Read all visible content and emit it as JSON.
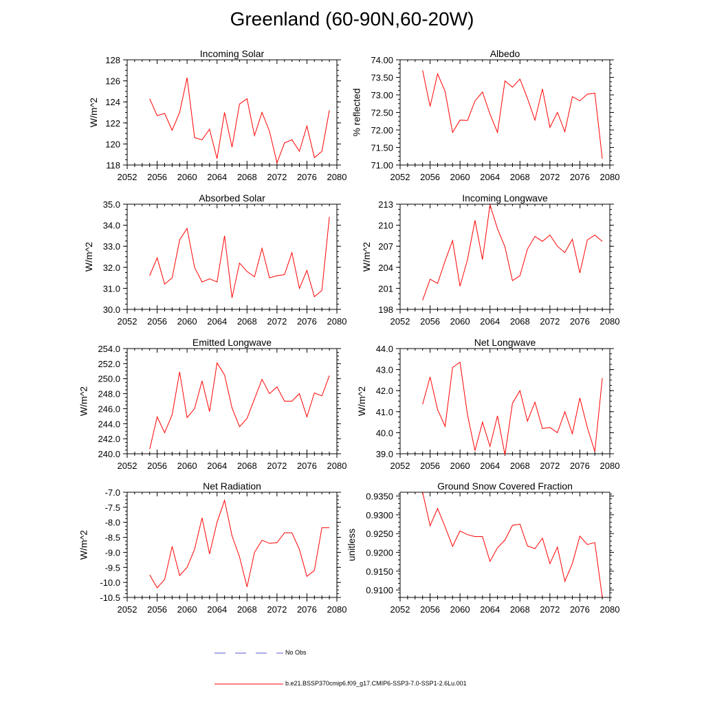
{
  "title": "Greenland (60-90N,60-20W)",
  "legend": {
    "entries": [
      {
        "label": "No Obs",
        "color": "#5a5ad8",
        "style": "dashed"
      },
      {
        "label": "b.e21.BSSP370cmip6.f09_g17.CMIP6-SSP3-7.0-SSP1-2.6Lu.001",
        "color": "#ff0000",
        "style": "solid"
      }
    ]
  },
  "chart_data": [
    {
      "type": "line",
      "title": "Incoming Solar",
      "xlabel": "",
      "ylabel": "W/m^2",
      "xlim": [
        2052,
        2080
      ],
      "ylim": [
        118,
        128
      ],
      "xticks": [
        "2052",
        "2056",
        "2060",
        "2064",
        "2068",
        "2072",
        "2076",
        "2080"
      ],
      "yticks": [
        "118",
        "120",
        "122",
        "124",
        "126",
        "128"
      ],
      "series": [
        {
          "color": "#ff0000",
          "x": [
            2055,
            2056,
            2057,
            2058,
            2059,
            2060,
            2061,
            2062,
            2063,
            2064,
            2065,
            2066,
            2067,
            2068,
            2069,
            2070,
            2071,
            2072,
            2073,
            2074,
            2075,
            2076,
            2077,
            2078,
            2079
          ],
          "y": [
            124.3,
            122.7,
            122.9,
            121.3,
            123.0,
            126.3,
            120.6,
            120.4,
            121.4,
            118.6,
            123.0,
            119.7,
            123.8,
            124.3,
            120.8,
            123.0,
            121.2,
            118.2,
            120.1,
            120.4,
            119.3,
            121.7,
            118.7,
            119.3,
            123.2
          ]
        }
      ]
    },
    {
      "type": "line",
      "title": "Albedo",
      "xlabel": "",
      "ylabel": "% reflected",
      "xlim": [
        2052,
        2080
      ],
      "ylim": [
        71.0,
        74.0
      ],
      "xticks": [
        "2052",
        "2056",
        "2060",
        "2064",
        "2068",
        "2072",
        "2076",
        "2080"
      ],
      "yticks": [
        "71.00",
        "71.50",
        "72.00",
        "72.50",
        "73.00",
        "73.50",
        "74.00"
      ],
      "series": [
        {
          "color": "#ff0000",
          "x": [
            2055,
            2056,
            2057,
            2058,
            2059,
            2060,
            2061,
            2062,
            2063,
            2064,
            2065,
            2066,
            2067,
            2068,
            2069,
            2070,
            2071,
            2072,
            2073,
            2074,
            2075,
            2076,
            2077,
            2078,
            2079
          ],
          "y": [
            73.7,
            72.67,
            73.6,
            73.1,
            71.93,
            72.28,
            72.27,
            72.83,
            73.08,
            72.45,
            71.93,
            73.4,
            73.22,
            73.45,
            72.9,
            72.28,
            73.17,
            72.07,
            72.5,
            71.95,
            72.95,
            72.83,
            73.02,
            73.05,
            71.18
          ]
        }
      ]
    },
    {
      "type": "line",
      "title": "Absorbed Solar",
      "xlabel": "",
      "ylabel": "W/m^2",
      "xlim": [
        2052,
        2080
      ],
      "ylim": [
        30.0,
        35.0
      ],
      "xticks": [
        "2052",
        "2056",
        "2060",
        "2064",
        "2068",
        "2072",
        "2076",
        "2080"
      ],
      "yticks": [
        "30.0",
        "31.0",
        "32.0",
        "33.0",
        "34.0",
        "35.0"
      ],
      "series": [
        {
          "color": "#ff0000",
          "x": [
            2055,
            2056,
            2057,
            2058,
            2059,
            2060,
            2061,
            2062,
            2063,
            2064,
            2065,
            2066,
            2067,
            2068,
            2069,
            2070,
            2071,
            2072,
            2073,
            2074,
            2075,
            2076,
            2077,
            2078,
            2079
          ],
          "y": [
            31.6,
            32.45,
            31.2,
            31.5,
            33.3,
            33.85,
            32.0,
            31.3,
            31.45,
            31.3,
            33.5,
            30.55,
            32.2,
            31.8,
            31.55,
            32.9,
            31.5,
            31.6,
            31.65,
            32.7,
            31.0,
            31.85,
            30.6,
            30.9,
            34.4
          ]
        }
      ]
    },
    {
      "type": "line",
      "title": "Incoming Longwave",
      "xlabel": "",
      "ylabel": "W/m^2",
      "xlim": [
        2052,
        2080
      ],
      "ylim": [
        198,
        213
      ],
      "xticks": [
        "2052",
        "2056",
        "2060",
        "2064",
        "2068",
        "2072",
        "2076",
        "2080"
      ],
      "yticks": [
        "198",
        "201",
        "204",
        "207",
        "210",
        "213"
      ],
      "series": [
        {
          "color": "#ff0000",
          "x": [
            2055,
            2056,
            2057,
            2058,
            2059,
            2060,
            2061,
            2062,
            2063,
            2064,
            2065,
            2066,
            2067,
            2068,
            2069,
            2070,
            2071,
            2072,
            2073,
            2074,
            2075,
            2076,
            2077,
            2078,
            2079
          ],
          "y": [
            199.3,
            202.3,
            201.7,
            204.9,
            207.8,
            201.3,
            205.1,
            210.7,
            205.1,
            212.9,
            209.5,
            206.9,
            202.1,
            202.8,
            206.6,
            208.4,
            207.7,
            208.6,
            207.0,
            206.1,
            208.0,
            203.2,
            207.9,
            208.6,
            207.7
          ]
        }
      ]
    },
    {
      "type": "line",
      "title": "Emitted Longwave",
      "xlabel": "",
      "ylabel": "W/m^2",
      "xlim": [
        2052,
        2080
      ],
      "ylim": [
        240.0,
        254.0
      ],
      "xticks": [
        "2052",
        "2056",
        "2060",
        "2064",
        "2068",
        "2072",
        "2076",
        "2080"
      ],
      "yticks": [
        "240.0",
        "242.0",
        "244.0",
        "246.0",
        "248.0",
        "250.0",
        "252.0",
        "254.0"
      ],
      "series": [
        {
          "color": "#ff0000",
          "x": [
            2055,
            2056,
            2057,
            2058,
            2059,
            2060,
            2061,
            2062,
            2063,
            2064,
            2065,
            2066,
            2067,
            2068,
            2069,
            2070,
            2071,
            2072,
            2073,
            2074,
            2075,
            2076,
            2077,
            2078,
            2079
          ],
          "y": [
            240.6,
            244.9,
            242.8,
            245.2,
            250.9,
            244.8,
            246.0,
            249.7,
            245.6,
            252.1,
            250.5,
            246.1,
            243.6,
            244.7,
            247.3,
            249.9,
            248.0,
            248.9,
            247.0,
            247.0,
            248.0,
            244.9,
            248.1,
            247.7,
            250.4
          ]
        }
      ]
    },
    {
      "type": "line",
      "title": "Net Longwave",
      "xlabel": "",
      "ylabel": "W/m^2",
      "xlim": [
        2052,
        2080
      ],
      "ylim": [
        39.0,
        44.0
      ],
      "xticks": [
        "2052",
        "2056",
        "2060",
        "2064",
        "2068",
        "2072",
        "2076",
        "2080"
      ],
      "yticks": [
        "39.0",
        "40.0",
        "41.0",
        "42.0",
        "43.0",
        "44.0"
      ],
      "series": [
        {
          "color": "#ff0000",
          "x": [
            2055,
            2056,
            2057,
            2058,
            2059,
            2060,
            2061,
            2062,
            2063,
            2064,
            2065,
            2066,
            2067,
            2068,
            2069,
            2070,
            2071,
            2072,
            2073,
            2074,
            2075,
            2076,
            2077,
            2078,
            2079
          ],
          "y": [
            41.35,
            42.65,
            41.1,
            40.3,
            43.1,
            43.35,
            40.85,
            39.15,
            40.5,
            39.35,
            40.8,
            38.95,
            41.4,
            42.0,
            40.55,
            41.45,
            40.2,
            40.25,
            40.0,
            41.0,
            39.95,
            41.65,
            40.25,
            39.1,
            42.6
          ]
        }
      ]
    },
    {
      "type": "line",
      "title": "Net Radiation",
      "xlabel": "",
      "ylabel": "W/m^2",
      "xlim": [
        2052,
        2080
      ],
      "ylim": [
        -10.5,
        -7.0
      ],
      "xticks": [
        "2052",
        "2056",
        "2060",
        "2064",
        "2068",
        "2072",
        "2076",
        "2080"
      ],
      "yticks": [
        "-10.5",
        "-10.0",
        "-9.5",
        "-9.0",
        "-8.5",
        "-8.0",
        "-7.5",
        "-7.0"
      ],
      "series": [
        {
          "color": "#ff0000",
          "x": [
            2055,
            2056,
            2057,
            2058,
            2059,
            2060,
            2061,
            2062,
            2063,
            2064,
            2065,
            2066,
            2067,
            2068,
            2069,
            2070,
            2071,
            2072,
            2073,
            2074,
            2075,
            2076,
            2077,
            2078,
            2079
          ],
          "y": [
            -9.75,
            -10.18,
            -9.9,
            -8.8,
            -9.77,
            -9.5,
            -8.9,
            -7.85,
            -9.05,
            -8.0,
            -7.27,
            -8.45,
            -9.15,
            -10.15,
            -9.0,
            -8.6,
            -8.7,
            -8.68,
            -8.35,
            -8.35,
            -8.9,
            -9.8,
            -9.6,
            -8.18,
            -8.18
          ]
        }
      ]
    },
    {
      "type": "line",
      "title": "Ground Snow Covered Fraction",
      "xlabel": "",
      "ylabel": "unitless",
      "xlim": [
        2052,
        2080
      ],
      "ylim": [
        0.908,
        0.936
      ],
      "xticks": [
        "2052",
        "2056",
        "2060",
        "2064",
        "2068",
        "2072",
        "2076",
        "2080"
      ],
      "yticks": [
        "0.9100",
        "0.9150",
        "0.9200",
        "0.9250",
        "0.9300",
        "0.9350"
      ],
      "series": [
        {
          "color": "#ff0000",
          "x": [
            2055,
            2056,
            2057,
            2058,
            2059,
            2060,
            2061,
            2062,
            2063,
            2064,
            2065,
            2066,
            2067,
            2068,
            2069,
            2070,
            2071,
            2072,
            2073,
            2074,
            2075,
            2076,
            2077,
            2078,
            2079
          ],
          "y": [
            0.936,
            0.9271,
            0.9317,
            0.9268,
            0.9216,
            0.9257,
            0.9247,
            0.9242,
            0.9242,
            0.9176,
            0.9212,
            0.9233,
            0.9272,
            0.9275,
            0.9217,
            0.921,
            0.9238,
            0.917,
            0.9214,
            0.9123,
            0.917,
            0.9243,
            0.9221,
            0.9226,
            0.908
          ]
        }
      ]
    }
  ]
}
